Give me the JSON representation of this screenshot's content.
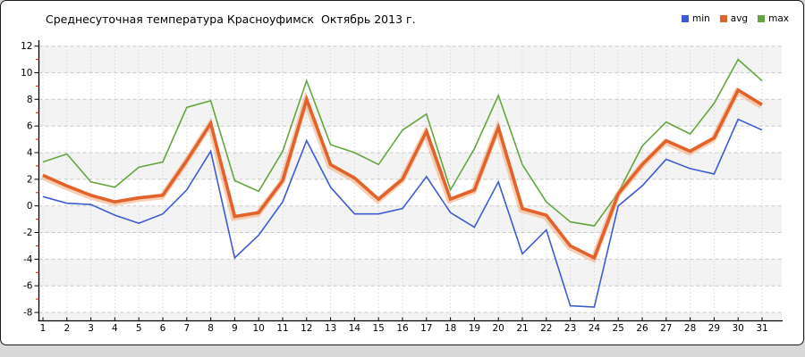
{
  "chart": {
    "title": "Среднесуточная температура Красноуфимск  Октябрь 2013 г.",
    "legend": [
      {
        "label": "min",
        "color": "#3d5bd4"
      },
      {
        "label": "avg",
        "color": "#e2622b"
      },
      {
        "label": "max",
        "color": "#64a63e"
      }
    ]
  },
  "chart_data": {
    "type": "line",
    "title": "Среднесуточная температура Красноуфимск  Октябрь 2013 г.",
    "x": [
      1,
      2,
      3,
      4,
      5,
      6,
      7,
      8,
      9,
      10,
      11,
      12,
      13,
      14,
      15,
      16,
      17,
      18,
      19,
      20,
      21,
      22,
      23,
      24,
      25,
      26,
      27,
      28,
      29,
      30,
      31
    ],
    "series": [
      {
        "name": "min",
        "color": "#3d5bd4",
        "width": 1.6,
        "values": [
          0.7,
          0.2,
          0.1,
          -0.7,
          -1.3,
          -0.6,
          1.2,
          4.1,
          -3.9,
          -2.2,
          0.3,
          4.9,
          1.4,
          -0.6,
          -0.6,
          -0.2,
          2.2,
          -0.5,
          -1.6,
          1.8,
          -3.6,
          -1.8,
          -7.5,
          -7.6,
          0.0,
          1.5,
          3.5,
          2.8,
          2.4,
          6.5,
          5.7
        ]
      },
      {
        "name": "avg",
        "color": "#e2622b",
        "width": 3.6,
        "values": [
          2.3,
          1.5,
          0.8,
          0.3,
          0.6,
          0.8,
          3.4,
          6.2,
          -0.8,
          -0.5,
          1.9,
          8.0,
          3.1,
          2.1,
          0.5,
          2.0,
          5.6,
          0.5,
          1.2,
          5.9,
          -0.2,
          -0.7,
          -3.0,
          -3.9,
          0.9,
          3.1,
          4.9,
          4.1,
          5.1,
          8.7,
          7.6
        ]
      },
      {
        "name": "max",
        "color": "#64a63e",
        "width": 1.6,
        "values": [
          3.3,
          3.9,
          1.8,
          1.4,
          2.9,
          3.3,
          7.4,
          7.9,
          1.9,
          1.1,
          4.1,
          9.4,
          4.6,
          4.0,
          3.1,
          5.7,
          6.9,
          1.2,
          4.3,
          8.3,
          3.1,
          0.3,
          -1.2,
          -1.5,
          1.0,
          4.5,
          6.3,
          5.4,
          7.7,
          11.0,
          9.4
        ]
      }
    ],
    "xlabel": "",
    "ylabel": "",
    "ylim": [
      -8,
      12
    ],
    "ytick_step": 2,
    "grid": true,
    "legend_position": "top-right",
    "colors": {
      "band": "#f3f3f3",
      "grid": "#c9c9c9",
      "axis": "#000000",
      "minor_tick": "#cc2200",
      "avg_halo": "#f4a878"
    }
  }
}
